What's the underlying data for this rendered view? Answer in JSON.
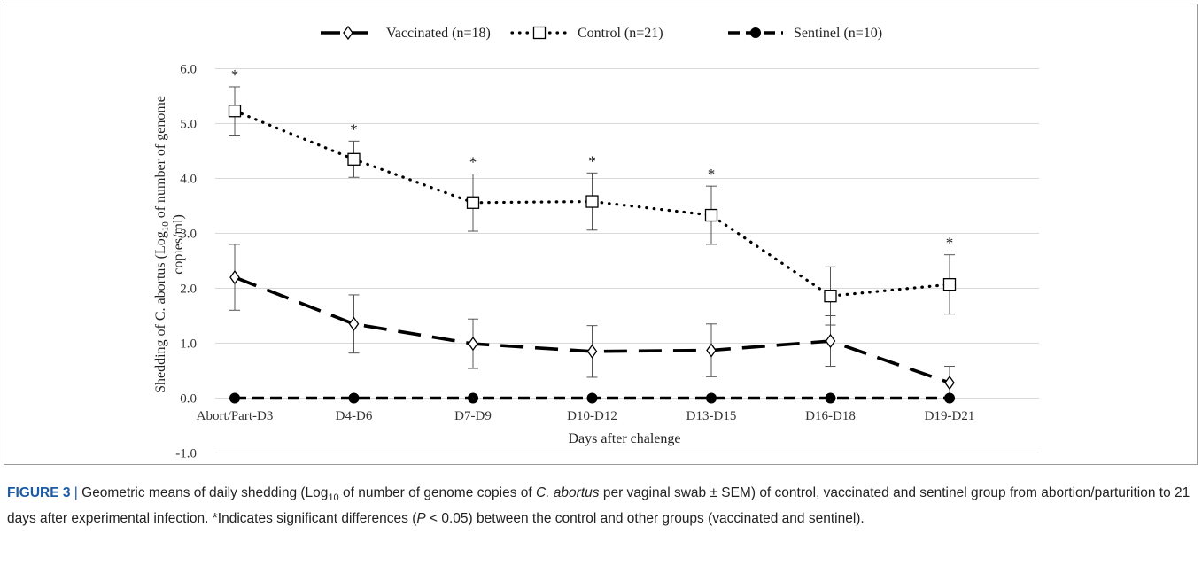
{
  "chart_data": {
    "type": "line",
    "categories": [
      "Abort/Part-D3",
      "D4-D6",
      "D7-D9",
      "D10-D12",
      "D13-D15",
      "D16-D18",
      "D19-D21"
    ],
    "ylim": [
      -1.0,
      6.0
    ],
    "yticks": [
      "-1.0",
      "0.0",
      "1.0",
      "2.0",
      "3.0",
      "4.0",
      "5.0",
      "6.0"
    ],
    "grid": "horizontal",
    "legend_position": "top",
    "xlabel": "Days after chalenge",
    "ylabel_parts": [
      "Shedding of C. abortus (Log",
      "10",
      " of number of genome",
      "copies/ml)"
    ],
    "series": [
      {
        "name": "Vaccinated (n=18)",
        "style": "long-dash",
        "marker": "diamond",
        "color": "#000000",
        "values": [
          2.2,
          1.35,
          0.99,
          0.85,
          0.87,
          1.04,
          0.28
        ],
        "errors": [
          0.6,
          0.53,
          0.45,
          0.47,
          0.48,
          0.46,
          0.3
        ]
      },
      {
        "name": "Control (n=21)",
        "style": "dotted",
        "marker": "square",
        "color": "#000000",
        "values": [
          5.23,
          4.35,
          3.56,
          3.58,
          3.33,
          1.86,
          2.07
        ],
        "errors": [
          0.44,
          0.33,
          0.52,
          0.52,
          0.53,
          0.53,
          0.54
        ]
      },
      {
        "name": "Sentinel (n=10)",
        "style": "dashed",
        "marker": "circle",
        "color": "#000000",
        "values": [
          0,
          0,
          0,
          0,
          0,
          0,
          0
        ],
        "errors": [
          0,
          0,
          0,
          0,
          0,
          0,
          0
        ]
      }
    ],
    "annotations": [
      {
        "category": "Abort/Part-D3",
        "text": "*"
      },
      {
        "category": "D4-D6",
        "text": "*"
      },
      {
        "category": "D7-D9",
        "text": "*"
      },
      {
        "category": "D10-D12",
        "text": "*"
      },
      {
        "category": "D13-D15",
        "text": "*"
      },
      {
        "category": "D19-D21",
        "text": "*"
      }
    ]
  },
  "caption": {
    "label": "FIGURE 3",
    "separator": "|",
    "t1": " Geometric means of daily shedding (Log",
    "t1_sub": "10",
    "t2": " of number of genome copies of ",
    "t2_italic": "C. abortus",
    "t3": " per vaginal swab ± SEM) of control, vaccinated and sentinel group from abortion/parturition to 21 days after experimental infection. *Indicates significant differences (",
    "t3_italic": "P",
    "t4": " < 0.05) between the control and other groups (vaccinated and sentinel)."
  }
}
